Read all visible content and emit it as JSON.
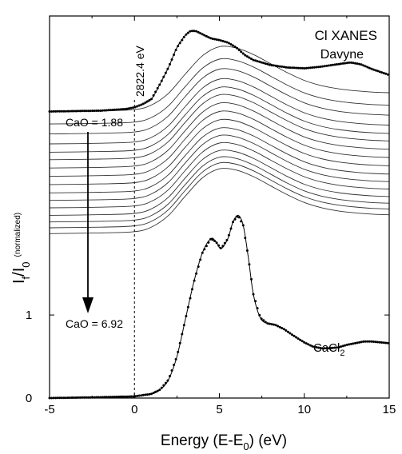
{
  "chart_data": {
    "type": "line",
    "title": "Cl XANES",
    "xlabel": "Energy (E-E0) (eV)",
    "xlabel_main": "Energy (E-E",
    "xlabel_sub": "0",
    "xlabel_tail": ") (eV)",
    "ylabel": "I/I0 (normalized)",
    "ylabel_main_1": "I",
    "ylabel_sub_1": "f",
    "ylabel_slash": "/I",
    "ylabel_sub_2": "0",
    "ylabel_note": "(normalized)",
    "xlim": [
      -5,
      15
    ],
    "ylim": [
      0,
      4.6
    ],
    "x_ticks": [
      -5,
      0,
      5,
      10,
      15
    ],
    "y_ticks": [
      0,
      1
    ],
    "grid": false,
    "annotations": {
      "edge_label": "2822.4 eV",
      "edge_x": 0,
      "cao_top": "CaO = 1.88",
      "cao_bottom": "CaO = 6.92",
      "cacl2_main": "CaCl",
      "cacl2_sub": "2",
      "davyne": "Davyne"
    },
    "series": [
      {
        "name": "Davyne",
        "style": "dotted",
        "x": [
          -5,
          -2,
          -0.5,
          0,
          0.5,
          1.0,
          1.5,
          2.0,
          2.5,
          3.0,
          3.3,
          3.6,
          4.0,
          4.5,
          5.0,
          5.5,
          6.0,
          6.5,
          7.0,
          8.0,
          9.0,
          10.0,
          11.0,
          12.0,
          12.7,
          13.3,
          14.0,
          15.0
        ],
        "y": [
          3.45,
          3.46,
          3.48,
          3.5,
          3.54,
          3.6,
          3.78,
          3.98,
          4.22,
          4.37,
          4.42,
          4.42,
          4.38,
          4.33,
          4.31,
          4.28,
          4.22,
          4.13,
          4.07,
          4.01,
          3.98,
          3.97,
          3.99,
          4.02,
          4.04,
          4.02,
          3.96,
          3.89
        ]
      },
      {
        "name": "CaCl2",
        "style": "dotted",
        "x": [
          -5,
          -2,
          0,
          1,
          1.5,
          2.0,
          2.5,
          3.0,
          3.5,
          4.0,
          4.5,
          4.8,
          5.1,
          5.5,
          5.8,
          6.1,
          6.4,
          6.7,
          7.0,
          7.4,
          7.8,
          8.3,
          8.8,
          9.3,
          10.0,
          10.5,
          11.0,
          11.5,
          12.0,
          12.5,
          13.0,
          13.5,
          14.0,
          15.0
        ],
        "y": [
          0.0,
          0.01,
          0.02,
          0.05,
          0.1,
          0.22,
          0.5,
          0.95,
          1.4,
          1.75,
          1.92,
          1.88,
          1.8,
          1.92,
          2.12,
          2.2,
          2.08,
          1.7,
          1.25,
          0.97,
          0.9,
          0.88,
          0.83,
          0.76,
          0.67,
          0.62,
          0.6,
          0.6,
          0.61,
          0.64,
          0.66,
          0.68,
          0.68,
          0.66
        ]
      }
    ],
    "spectra_family": {
      "count": 16,
      "from_label": "CaO = 1.88",
      "to_label": "CaO = 6.92",
      "x": [
        -5,
        -2,
        0,
        1,
        2,
        3,
        4,
        5,
        6,
        7,
        8,
        9,
        10,
        11,
        12,
        13,
        14,
        15
      ],
      "baselines": [
        3.45,
        3.3,
        3.18,
        3.06,
        2.96,
        2.87,
        2.77,
        2.67,
        2.57,
        2.47,
        2.38,
        2.29,
        2.2,
        2.12,
        2.05,
        1.98
      ],
      "shape": [
        0.0,
        0.01,
        0.03,
        0.1,
        0.28,
        0.58,
        0.86,
        1.0,
        0.98,
        0.88,
        0.74,
        0.6,
        0.48,
        0.4,
        0.35,
        0.32,
        0.3,
        0.29
      ],
      "amplitude": 0.78
    }
  }
}
